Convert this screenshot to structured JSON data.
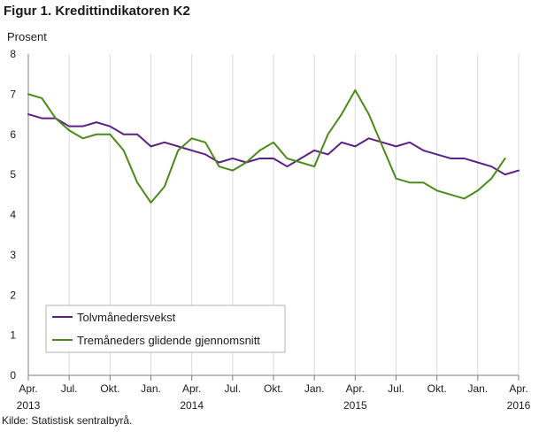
{
  "title": "Figur 1. Kredittindikatoren K2",
  "y_unit": "Prosent",
  "source": "Kilde: Statistisk sentralbyrå.",
  "colors": {
    "series_1": "#5b2086",
    "series_2": "#4b8a1a",
    "grid": "#d9d9d9",
    "axis": "#7f7f7f",
    "legend_border": "#b3b3b3"
  },
  "chart_data": {
    "type": "line",
    "x_labels": [
      "Apr.",
      "Jul.",
      "Okt.",
      "Jan.",
      "Apr.",
      "Jul.",
      "Okt.",
      "Jan.",
      "Apr.",
      "Jul.",
      "Okt.",
      "Jan.",
      "Apr."
    ],
    "x_label_years": [
      "2013",
      "",
      "",
      "",
      "2014",
      "",
      "",
      "",
      "2015",
      "",
      "",
      "",
      "2016"
    ],
    "x": [
      "2013-04",
      "2013-05",
      "2013-06",
      "2013-07",
      "2013-08",
      "2013-09",
      "2013-10",
      "2013-11",
      "2013-12",
      "2014-01",
      "2014-02",
      "2014-03",
      "2014-04",
      "2014-05",
      "2014-06",
      "2014-07",
      "2014-08",
      "2014-09",
      "2014-10",
      "2014-11",
      "2014-12",
      "2015-01",
      "2015-02",
      "2015-03",
      "2015-04",
      "2015-05",
      "2015-06",
      "2015-07",
      "2015-08",
      "2015-09",
      "2015-10",
      "2015-11",
      "2015-12",
      "2016-01",
      "2016-02",
      "2016-03",
      "2016-04"
    ],
    "yticks": [
      "0",
      "1",
      "2",
      "3",
      "4",
      "5",
      "6",
      "7",
      "8"
    ],
    "ylim": [
      0,
      8
    ],
    "grid": "vertical",
    "legend_position": "bottom-left",
    "series": [
      {
        "name": "Tolvmånedersvekst",
        "values": [
          6.5,
          6.4,
          6.4,
          6.2,
          6.2,
          6.3,
          6.2,
          6.0,
          6.0,
          5.7,
          5.8,
          5.7,
          5.6,
          5.5,
          5.3,
          5.4,
          5.3,
          5.4,
          5.4,
          5.2,
          5.4,
          5.6,
          5.5,
          5.8,
          5.7,
          5.9,
          5.8,
          5.7,
          5.8,
          5.6,
          5.5,
          5.4,
          5.4,
          5.3,
          5.2,
          5.0,
          5.1
        ]
      },
      {
        "name": "Tremåneders glidende gjennomsnitt",
        "values": [
          7.0,
          6.9,
          6.4,
          6.1,
          5.9,
          6.0,
          6.0,
          5.6,
          4.8,
          4.3,
          4.7,
          5.6,
          5.9,
          5.8,
          5.2,
          5.1,
          5.3,
          5.6,
          5.8,
          5.4,
          5.3,
          5.2,
          6.0,
          6.5,
          7.1,
          6.5,
          5.7,
          4.9,
          4.8,
          4.8,
          4.6,
          4.5,
          4.4,
          4.6,
          4.9,
          5.4,
          null
        ]
      }
    ]
  }
}
